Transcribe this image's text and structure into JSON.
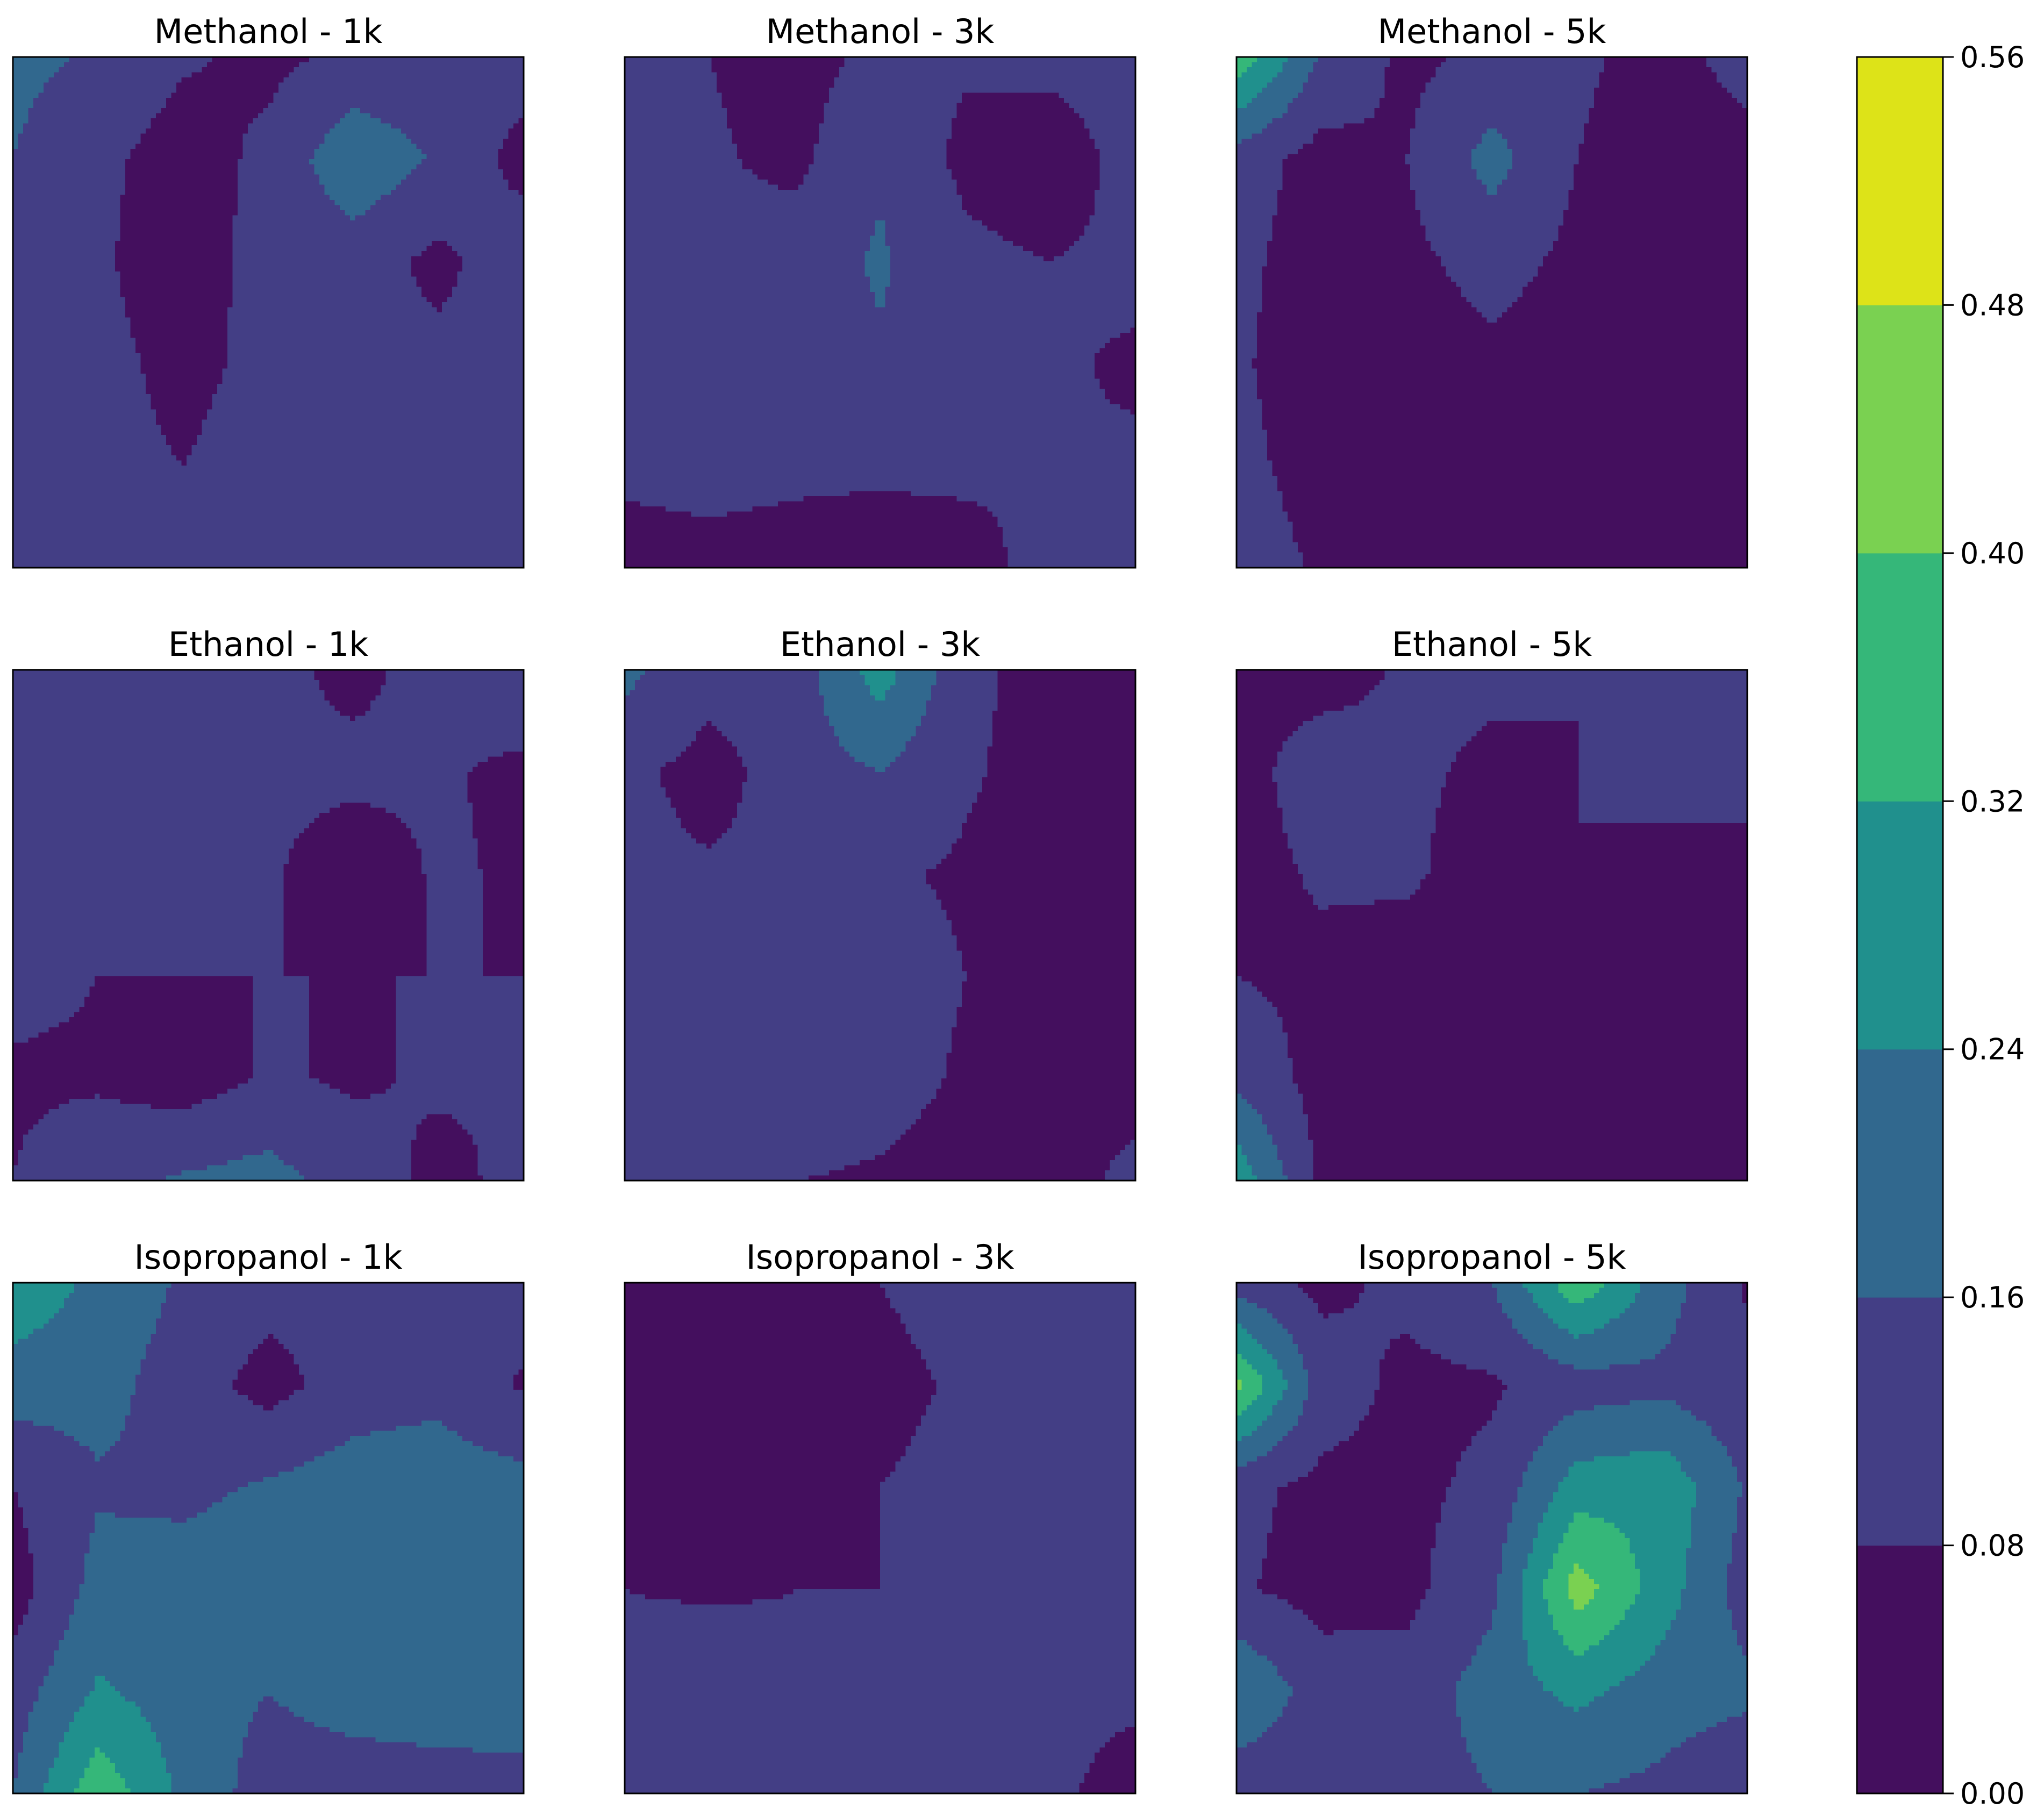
{
  "chart_data": {
    "type": "heatmap",
    "style": "filled-contour",
    "grid": false,
    "colormap": {
      "levels": [
        0.0,
        0.08,
        0.16,
        0.24,
        0.32,
        0.4,
        0.48,
        0.56
      ],
      "colors": [
        "#440f5e",
        "#433e85",
        "#31688e",
        "#20908d",
        "#35b779",
        "#7ad151",
        "#dde318"
      ],
      "tick_labels": [
        "0.00",
        "0.08",
        "0.16",
        "0.24",
        "0.32",
        "0.40",
        "0.48",
        "0.56"
      ],
      "placement": "right"
    },
    "panels": [
      {
        "title": "Methanol - 1k",
        "z": [
          [
            0.18,
            0.15,
            0.09,
            0.06,
            0.1,
            0.1,
            0.12
          ],
          [
            0.16,
            0.1,
            0.04,
            0.1,
            0.22,
            0.15,
            0.05
          ],
          [
            0.15,
            0.09,
            0.04,
            0.11,
            0.12,
            0.06,
            0.13
          ],
          [
            0.14,
            0.1,
            0.06,
            0.1,
            0.09,
            0.1,
            0.11
          ],
          [
            0.12,
            0.1,
            0.08,
            0.11,
            0.11,
            0.09,
            0.1
          ],
          [
            0.1,
            0.12,
            0.15,
            0.13,
            0.13,
            0.12,
            0.09
          ]
        ]
      },
      {
        "title": "Methanol - 3k",
        "z": [
          [
            0.12,
            0.08,
            0.05,
            0.1,
            0.09,
            0.11,
            0.13
          ],
          [
            0.1,
            0.09,
            0.06,
            0.15,
            0.06,
            0.02,
            0.12
          ],
          [
            0.09,
            0.1,
            0.12,
            0.17,
            0.1,
            0.08,
            0.1
          ],
          [
            0.1,
            0.12,
            0.12,
            0.15,
            0.15,
            0.09,
            0.07
          ],
          [
            0.09,
            0.1,
            0.09,
            0.09,
            0.09,
            0.08,
            0.09
          ],
          [
            0.06,
            0.06,
            0.06,
            0.05,
            0.06,
            0.1,
            0.13
          ]
        ]
      },
      {
        "title": "Methanol - 5k",
        "z": [
          [
            0.38,
            0.15,
            0.06,
            0.1,
            0.09,
            0.06,
            0.1
          ],
          [
            0.12,
            0.05,
            0.08,
            0.19,
            0.08,
            0.05,
            0.06
          ],
          [
            0.1,
            0.04,
            0.06,
            0.11,
            0.06,
            0.04,
            0.05
          ],
          [
            0.09,
            0.04,
            0.04,
            0.06,
            0.04,
            0.04,
            0.05
          ],
          [
            0.1,
            0.05,
            0.04,
            0.04,
            0.04,
            0.04,
            0.04
          ],
          [
            0.12,
            0.07,
            0.04,
            0.04,
            0.04,
            0.04,
            0.04
          ]
        ]
      },
      {
        "title": "Ethanol - 1k",
        "z": [
          [
            0.14,
            0.13,
            0.12,
            0.1,
            0.06,
            0.11,
            0.15
          ],
          [
            0.14,
            0.14,
            0.12,
            0.1,
            0.1,
            0.09,
            0.06
          ],
          [
            0.13,
            0.1,
            0.08,
            0.09,
            0.03,
            0.09,
            0.07
          ],
          [
            0.1,
            0.08,
            0.08,
            0.08,
            0.08,
            0.08,
            0.08
          ],
          [
            0.07,
            0.07,
            0.04,
            0.09,
            0.07,
            0.09,
            0.08
          ],
          [
            0.08,
            0.13,
            0.17,
            0.19,
            0.12,
            0.06,
            0.1
          ]
        ]
      },
      {
        "title": "Ethanol - 3k",
        "z": [
          [
            0.18,
            0.11,
            0.12,
            0.28,
            0.1,
            0.05,
            0.05
          ],
          [
            0.1,
            0.05,
            0.12,
            0.16,
            0.09,
            0.05,
            0.05
          ],
          [
            0.1,
            0.09,
            0.1,
            0.09,
            0.07,
            0.05,
            0.05
          ],
          [
            0.13,
            0.14,
            0.14,
            0.12,
            0.08,
            0.05,
            0.05
          ],
          [
            0.11,
            0.16,
            0.14,
            0.11,
            0.07,
            0.05,
            0.05
          ],
          [
            0.09,
            0.09,
            0.08,
            0.07,
            0.05,
            0.05,
            0.1
          ]
        ]
      },
      {
        "title": "Ethanol - 5k",
        "z": [
          [
            0.06,
            0.05,
            0.09,
            0.09,
            0.08,
            0.1,
            0.11
          ],
          [
            0.05,
            0.12,
            0.09,
            0.07,
            0.08,
            0.09,
            0.09
          ],
          [
            0.05,
            0.09,
            0.09,
            0.05,
            0.08,
            0.07,
            0.07
          ],
          [
            0.08,
            0.06,
            0.05,
            0.04,
            0.08,
            0.05,
            0.05
          ],
          [
            0.14,
            0.05,
            0.04,
            0.04,
            0.08,
            0.04,
            0.04
          ],
          [
            0.3,
            0.06,
            0.04,
            0.04,
            0.07,
            0.05,
            0.05
          ]
        ]
      },
      {
        "title": "Isopropanol - 1k",
        "z": [
          [
            0.3,
            0.22,
            0.15,
            0.11,
            0.1,
            0.08,
            0.12
          ],
          [
            0.2,
            0.19,
            0.12,
            0.05,
            0.12,
            0.14,
            0.07
          ],
          [
            0.08,
            0.15,
            0.14,
            0.17,
            0.2,
            0.2,
            0.19
          ],
          [
            0.04,
            0.19,
            0.2,
            0.21,
            0.22,
            0.22,
            0.21
          ],
          [
            0.12,
            0.25,
            0.2,
            0.16,
            0.2,
            0.21,
            0.22
          ],
          [
            0.16,
            0.38,
            0.22,
            0.12,
            0.11,
            0.12,
            0.12
          ]
        ]
      },
      {
        "title": "Isopropanol - 3k",
        "z": [
          [
            0.08,
            0.05,
            0.06,
            0.08,
            0.11,
            0.12,
            0.13
          ],
          [
            0.04,
            0.02,
            0.03,
            0.06,
            0.09,
            0.1,
            0.1
          ],
          [
            0.06,
            0.06,
            0.05,
            0.08,
            0.1,
            0.1,
            0.1
          ],
          [
            0.08,
            0.07,
            0.08,
            0.08,
            0.09,
            0.09,
            0.09
          ],
          [
            0.1,
            0.14,
            0.09,
            0.09,
            0.11,
            0.09,
            0.09
          ],
          [
            0.13,
            0.11,
            0.09,
            0.08,
            0.09,
            0.09,
            0.06
          ]
        ]
      },
      {
        "title": "Isopropanol - 5k",
        "z": [
          [
            0.12,
            0.06,
            0.1,
            0.16,
            0.38,
            0.2,
            0.07
          ],
          [
            0.42,
            0.12,
            0.06,
            0.07,
            0.12,
            0.14,
            0.1
          ],
          [
            0.1,
            0.06,
            0.06,
            0.1,
            0.28,
            0.3,
            0.15
          ],
          [
            0.09,
            0.05,
            0.06,
            0.14,
            0.44,
            0.28,
            0.12
          ],
          [
            0.24,
            0.12,
            0.11,
            0.2,
            0.26,
            0.2,
            0.18
          ],
          [
            0.1,
            0.1,
            0.12,
            0.16,
            0.16,
            0.14,
            0.08
          ]
        ]
      }
    ]
  }
}
